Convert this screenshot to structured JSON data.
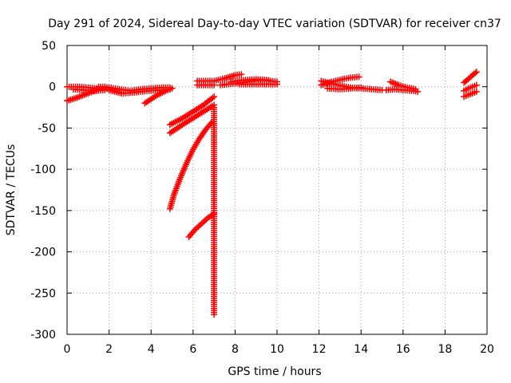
{
  "chart_data": {
    "type": "scatter",
    "title": "Day 291 of 2024, Sidereal Day-to-day VTEC variation (SDTVAR) for receiver cn37",
    "xlabel": "GPS time / hours",
    "ylabel": "SDTVAR / TECUs",
    "xlim": [
      0,
      20
    ],
    "ylim": [
      -300,
      50
    ],
    "xticks": [
      "0",
      "2",
      "4",
      "6",
      "8",
      "10",
      "12",
      "14",
      "16",
      "18",
      "20"
    ],
    "yticks": [
      "50",
      "0",
      "-50",
      "-100",
      "-150",
      "-200",
      "-250",
      "-300"
    ],
    "grid": true,
    "marker": "+",
    "series": [
      {
        "color": "#ff0000",
        "segments": [
          [
            [
              0.0,
              -17
            ],
            [
              0.5,
              -13
            ],
            [
              1.0,
              -8
            ],
            [
              1.5,
              -3
            ],
            [
              1.8,
              0
            ]
          ],
          [
            [
              0.0,
              0
            ],
            [
              0.5,
              0
            ],
            [
              1.0,
              -1
            ],
            [
              1.5,
              -2
            ],
            [
              2.0,
              -3
            ]
          ],
          [
            [
              0.3,
              -3
            ],
            [
              0.8,
              -4
            ],
            [
              1.3,
              -5
            ],
            [
              1.8,
              -4
            ]
          ],
          [
            [
              1.5,
              0
            ],
            [
              2.0,
              -1
            ],
            [
              2.5,
              -3
            ],
            [
              3.0,
              -5
            ],
            [
              3.5,
              -3
            ],
            [
              4.0,
              -2
            ],
            [
              4.5,
              -1
            ],
            [
              4.9,
              -1
            ]
          ],
          [
            [
              2.0,
              -4
            ],
            [
              2.6,
              -8
            ],
            [
              3.2,
              -7
            ],
            [
              3.8,
              -5
            ],
            [
              4.4,
              -4
            ],
            [
              4.9,
              -3
            ]
          ],
          [
            [
              3.7,
              -20
            ],
            [
              4.0,
              -15
            ],
            [
              4.3,
              -10
            ],
            [
              4.7,
              -5
            ],
            [
              5.0,
              -2
            ]
          ],
          [
            [
              4.9,
              -46
            ],
            [
              5.5,
              -38
            ],
            [
              6.0,
              -30
            ],
            [
              6.5,
              -22
            ],
            [
              7.0,
              -12
            ]
          ],
          [
            [
              4.9,
              -56
            ],
            [
              5.5,
              -46
            ],
            [
              6.0,
              -38
            ],
            [
              6.5,
              -30
            ],
            [
              7.0,
              -22
            ]
          ],
          [
            [
              4.9,
              -148
            ],
            [
              5.1,
              -130
            ],
            [
              5.4,
              -110
            ],
            [
              5.7,
              -92
            ],
            [
              6.0,
              -76
            ],
            [
              6.3,
              -63
            ],
            [
              6.6,
              -52
            ],
            [
              6.9,
              -43
            ]
          ],
          [
            [
              5.8,
              -182
            ],
            [
              6.1,
              -173
            ],
            [
              6.4,
              -166
            ],
            [
              6.7,
              -159
            ],
            [
              7.0,
              -154
            ]
          ],
          [
            [
              7.0,
              -25
            ],
            [
              7.0,
              -35
            ],
            [
              7.0,
              -61
            ],
            [
              7.0,
              -70
            ],
            [
              7.0,
              -276
            ]
          ],
          [
            [
              6.2,
              7
            ],
            [
              6.6,
              7
            ],
            [
              7.0,
              7
            ],
            [
              7.5,
              10
            ],
            [
              8.0,
              14
            ],
            [
              8.3,
              15
            ]
          ],
          [
            [
              6.2,
              2
            ],
            [
              6.6,
              2
            ],
            [
              7.0,
              2
            ]
          ],
          [
            [
              7.3,
              2
            ],
            [
              8.0,
              4
            ],
            [
              8.6,
              6
            ],
            [
              9.2,
              8
            ],
            [
              9.7,
              7
            ],
            [
              10.0,
              6
            ]
          ],
          [
            [
              7.8,
              6
            ],
            [
              8.4,
              8
            ],
            [
              9.0,
              9
            ],
            [
              9.6,
              8
            ]
          ],
          [
            [
              8.2,
              3
            ],
            [
              8.8,
              3
            ],
            [
              9.4,
              3
            ],
            [
              10.0,
              3
            ]
          ],
          [
            [
              12.1,
              7
            ],
            [
              12.6,
              4
            ],
            [
              13.1,
              1
            ],
            [
              13.5,
              -1
            ],
            [
              14.0,
              -2
            ],
            [
              14.5,
              -3
            ],
            [
              15.0,
              -4
            ]
          ],
          [
            [
              12.1,
              2
            ],
            [
              12.6,
              6
            ],
            [
              13.1,
              9
            ],
            [
              13.5,
              11
            ],
            [
              13.9,
              12
            ]
          ],
          [
            [
              12.4,
              -2
            ],
            [
              13.0,
              -3
            ],
            [
              13.5,
              -2
            ],
            [
              14.0,
              -1
            ]
          ],
          [
            [
              15.2,
              -4
            ],
            [
              15.6,
              -3
            ],
            [
              16.0,
              -4
            ],
            [
              16.5,
              -5
            ],
            [
              16.7,
              -6
            ]
          ],
          [
            [
              15.4,
              6
            ],
            [
              15.8,
              2
            ],
            [
              16.2,
              -1
            ],
            [
              16.6,
              -3
            ]
          ],
          [
            [
              18.9,
              5
            ],
            [
              19.1,
              9
            ],
            [
              19.3,
              14
            ],
            [
              19.5,
              18
            ]
          ],
          [
            [
              18.9,
              -5
            ],
            [
              19.1,
              -2
            ],
            [
              19.3,
              0
            ],
            [
              19.5,
              2
            ]
          ],
          [
            [
              18.9,
              -12
            ],
            [
              19.1,
              -10
            ],
            [
              19.3,
              -8
            ],
            [
              19.5,
              -6
            ]
          ]
        ]
      }
    ]
  }
}
